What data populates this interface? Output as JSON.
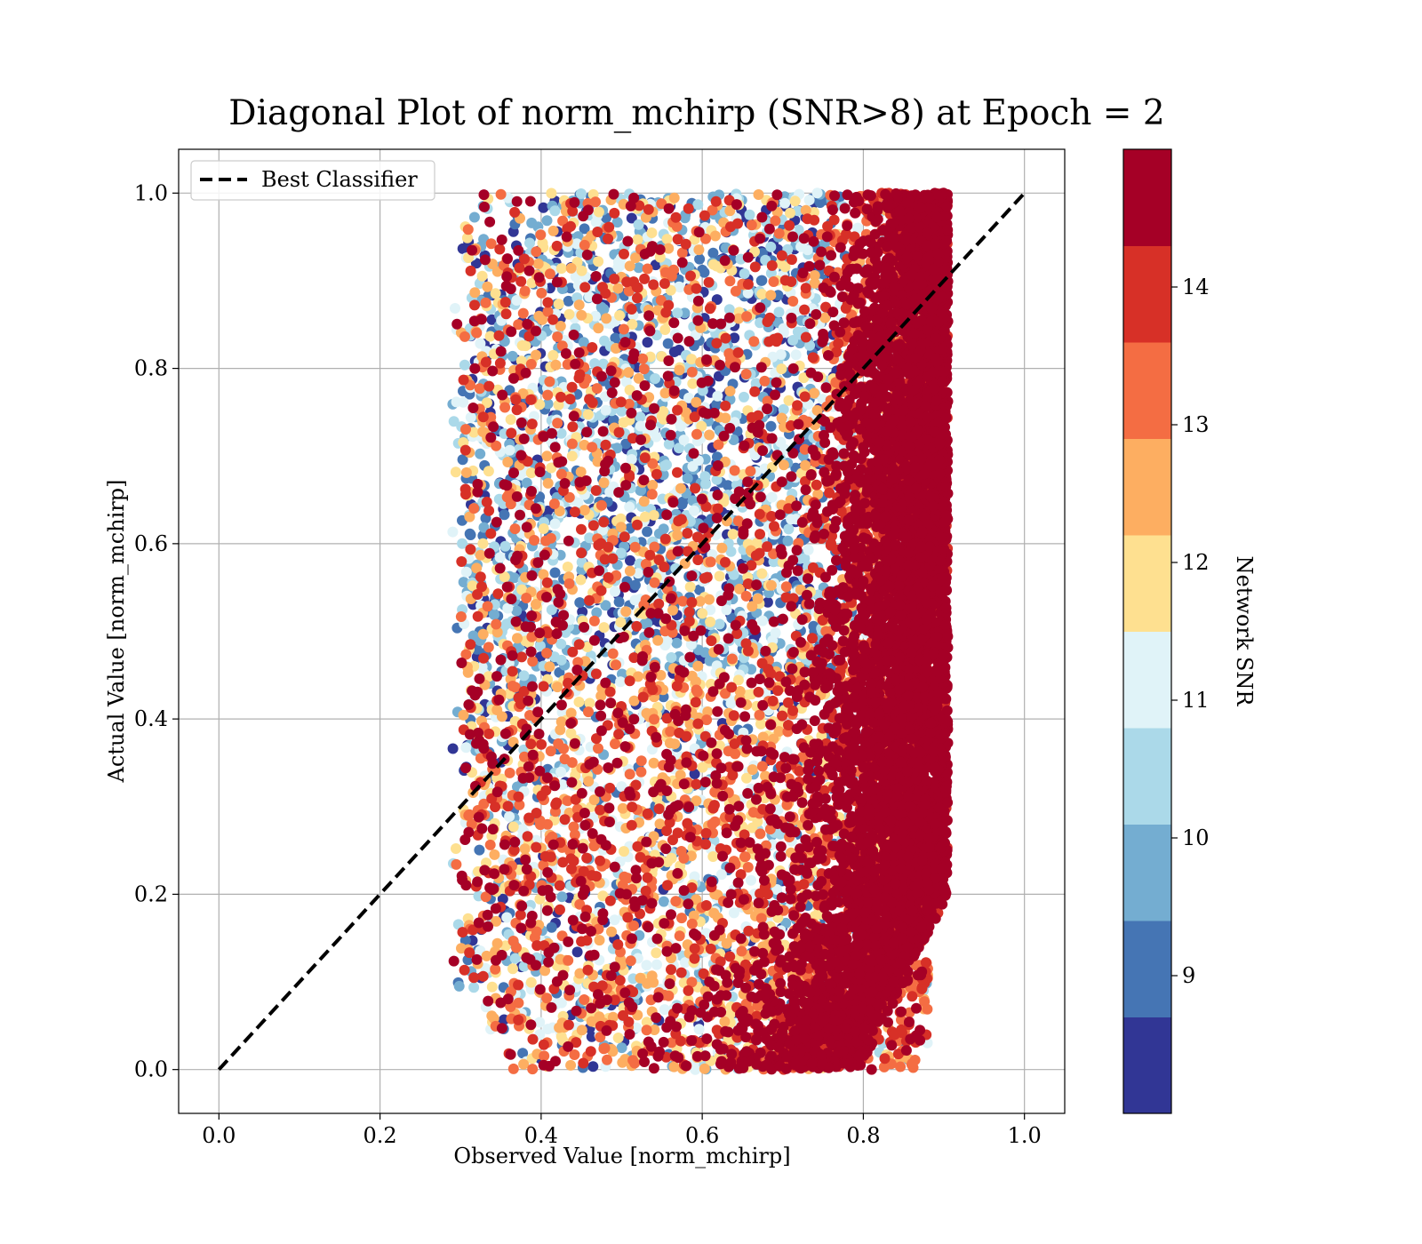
{
  "chart_data": {
    "type": "scatter",
    "title": "Diagonal Plot of norm_mchirp (SNR>8) at Epoch = 2",
    "xlabel": "Observed Value [norm_mchirp]",
    "ylabel": "Actual Value [norm_mchirp]",
    "xlim": [
      -0.05,
      1.05
    ],
    "ylim": [
      -0.05,
      1.05
    ],
    "xticks": [
      0.0,
      0.2,
      0.4,
      0.6,
      0.8,
      1.0
    ],
    "yticks": [
      0.0,
      0.2,
      0.4,
      0.6,
      0.8,
      1.0
    ],
    "xtick_labels": [
      "0.0",
      "0.2",
      "0.4",
      "0.6",
      "0.8",
      "1.0"
    ],
    "ytick_labels": [
      "0.0",
      "0.2",
      "0.4",
      "0.6",
      "0.8",
      "1.0"
    ],
    "grid": true,
    "legend": {
      "placement": "upper-left",
      "entries": [
        {
          "label": "Best Classifier",
          "style": "dashed",
          "color": "#000000"
        }
      ]
    },
    "reference_line": {
      "name": "Best Classifier",
      "x": [
        0.0,
        1.0
      ],
      "y": [
        0.0,
        1.0
      ],
      "style": "dashed"
    },
    "colorbar": {
      "label": "Network SNR",
      "range": [
        8.0,
        15.0
      ],
      "ticks": [
        9,
        10,
        11,
        12,
        13,
        14
      ],
      "tick_labels": [
        "9",
        "10",
        "11",
        "12",
        "13",
        "14"
      ],
      "colors": [
        "#313695",
        "#4575b4",
        "#74add1",
        "#abd9e9",
        "#e0f3f8",
        "#fee090",
        "#fdae61",
        "#f46d43",
        "#d73027",
        "#a50026"
      ]
    },
    "scatter_summary": {
      "note": "Dense cloud of thousands of points colored by Network SNR",
      "x_range": [
        0.29,
        0.93
      ],
      "y_range": [
        0.0,
        1.0
      ],
      "high_snr_band_x": [
        0.78,
        0.91
      ],
      "low_snr_region_x": [
        0.4,
        0.75
      ],
      "sample_points": [
        {
          "x": 0.3,
          "y": 0.62,
          "snr": 14.8
        },
        {
          "x": 0.29,
          "y": 0.23,
          "snr": 13.8
        },
        {
          "x": 0.33,
          "y": 0.05,
          "snr": 13.8
        },
        {
          "x": 0.45,
          "y": 0.99,
          "snr": 8.3
        },
        {
          "x": 0.57,
          "y": 0.99,
          "snr": 8.5
        },
        {
          "x": 0.92,
          "y": 0.73,
          "snr": 14.8
        },
        {
          "x": 0.92,
          "y": 0.25,
          "snr": 14.8
        },
        {
          "x": 0.7,
          "y": 0.0,
          "snr": 14.8
        },
        {
          "x": 0.47,
          "y": 0.0,
          "snr": 8.8
        }
      ]
    }
  }
}
